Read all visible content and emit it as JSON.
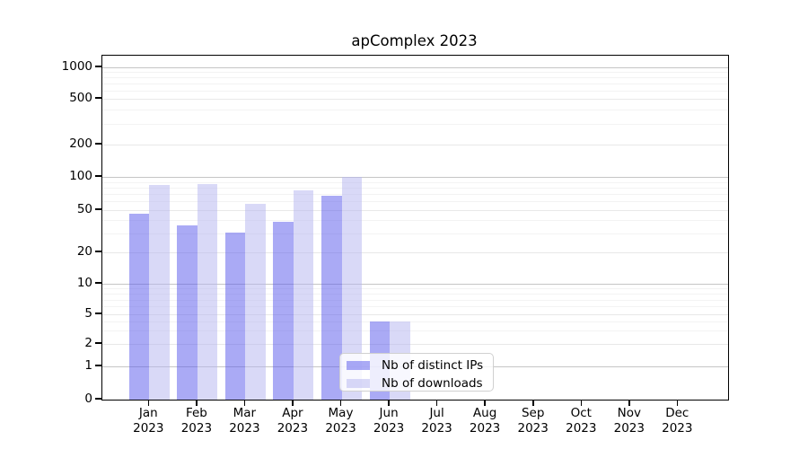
{
  "chart_data": {
    "type": "bar",
    "title": "apComplex 2023",
    "categories": [
      "Jan",
      "Feb",
      "Mar",
      "Apr",
      "May",
      "Jun",
      "Jul",
      "Aug",
      "Sep",
      "Oct",
      "Nov",
      "Dec"
    ],
    "year": "2023",
    "series": [
      {
        "name": "Nb of distinct IPs",
        "values": [
          46,
          36,
          31,
          39,
          68,
          4,
          0,
          0,
          0,
          0,
          0,
          0
        ],
        "color": "rgba(85,85,235,0.5)",
        "color_hex_on_white": "#aaaaf5"
      },
      {
        "name": "Nb of downloads",
        "values": [
          84,
          86,
          57,
          75,
          100,
          4,
          0,
          0,
          0,
          0,
          0,
          0
        ],
        "color": "rgba(180,180,240,0.5)",
        "color_hex_on_white": "#d9d9f8"
      }
    ],
    "yscale": "symlog",
    "yticks": [
      0,
      1,
      2,
      5,
      10,
      20,
      50,
      100,
      200,
      500,
      1000
    ],
    "ylim": [
      0,
      1300
    ],
    "grid": true,
    "legend_position": "inside-bottom-center"
  }
}
